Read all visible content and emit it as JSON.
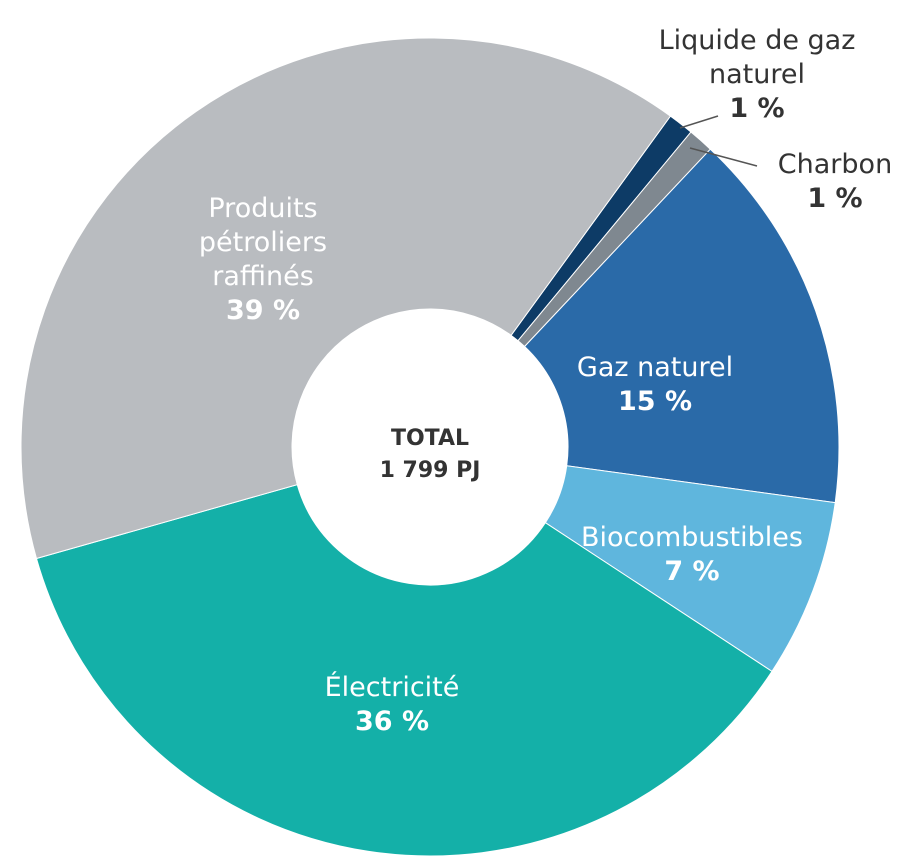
{
  "chart_data": {
    "type": "donut",
    "categories": [
      "Liquide de gaz naturel",
      "Charbon",
      "Gaz naturel",
      "Biocombustibles",
      "Électricité",
      "Produits pétroliers raffinés"
    ],
    "values": [
      1,
      1,
      15,
      7,
      36,
      39
    ],
    "value_labels": [
      "1 %",
      "1 %",
      "15 %",
      "7 %",
      "36 %",
      "39 %"
    ],
    "colors": [
      "#0d3b66",
      "#7f8890",
      "#2a6aa8",
      "#5fb6dd",
      "#14b0a8",
      "#b9bcc0"
    ],
    "total_label": "TOTAL",
    "total_value": "1 799 PJ"
  }
}
